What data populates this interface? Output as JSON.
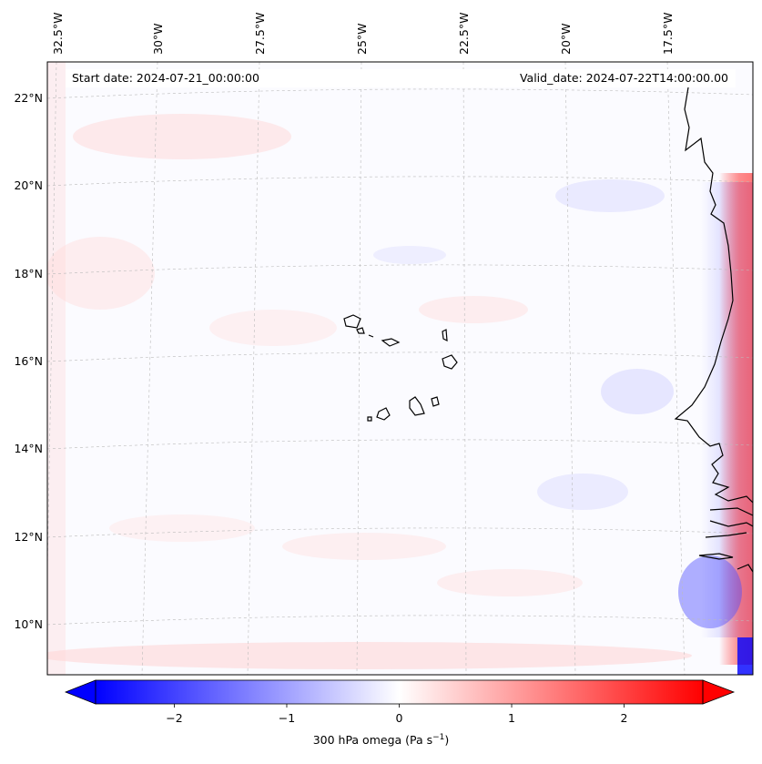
{
  "map": {
    "start_date": "Start date: 2024-07-21_00:00:00",
    "valid_date": "Valid_date: 2024-07-22T14:00:00.00",
    "lon_labels": [
      "32.5°W",
      "30°W",
      "27.5°W",
      "25°W",
      "22.5°W",
      "20°W",
      "17.5°W"
    ],
    "lat_labels": [
      "22°N",
      "20°N",
      "18°N",
      "16°N",
      "14°N",
      "12°N",
      "10°N"
    ],
    "colorbar": {
      "label_prefix": "300 hPa omega (Pa s",
      "label_exp": "−1",
      "label_suffix": ")",
      "ticks": [
        "−2",
        "−1",
        "0",
        "1",
        "2"
      ],
      "vmin": -2.7,
      "vmax": 2.7,
      "colormap": "bwr",
      "extend": "both"
    },
    "colors": {
      "negative": "#0000ff",
      "zero": "#ffffff",
      "positive": "#ff0000"
    }
  }
}
